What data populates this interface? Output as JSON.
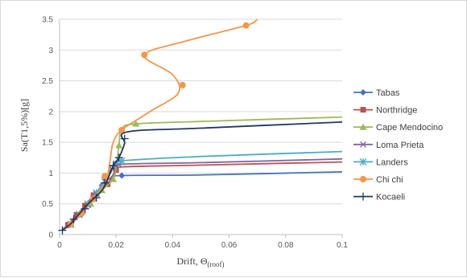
{
  "chart_data": {
    "type": "line",
    "xlabel": "Drift, Θ",
    "xlabel_sub": "(roof)",
    "ylabel": "Sa(T1,5%)[g]",
    "xlim": [
      0,
      0.1
    ],
    "ylim": [
      0,
      3.5
    ],
    "x_ticks": [
      "0",
      "0.02",
      "0.04",
      "0.06",
      "0.08",
      "0.1"
    ],
    "y_ticks": [
      "0",
      "0.5",
      "1",
      "1.5",
      "2",
      "2.5",
      "3",
      "3.5"
    ],
    "grid": "horizontal",
    "legend_position": "right",
    "series": [
      {
        "name": "Tabas",
        "color": "#4472C4",
        "marker": "diamond",
        "points": [
          [
            0.0008,
            0.08
          ],
          [
            0.003,
            0.15
          ],
          [
            0.006,
            0.3
          ],
          [
            0.009,
            0.45
          ],
          [
            0.012,
            0.62
          ],
          [
            0.015,
            0.8
          ],
          [
            0.018,
            0.92
          ],
          [
            0.022,
            0.96
          ],
          [
            0.05,
            0.97
          ],
          [
            0.1,
            1.02
          ]
        ],
        "marker_points": [
          [
            0.003,
            0.15
          ],
          [
            0.006,
            0.3
          ],
          [
            0.009,
            0.45
          ],
          [
            0.012,
            0.62
          ],
          [
            0.015,
            0.8
          ],
          [
            0.022,
            0.96
          ]
        ]
      },
      {
        "name": "Northridge",
        "color": "#C0504D",
        "marker": "square",
        "points": [
          [
            0.0008,
            0.08
          ],
          [
            0.003,
            0.16
          ],
          [
            0.006,
            0.32
          ],
          [
            0.009,
            0.47
          ],
          [
            0.012,
            0.64
          ],
          [
            0.015,
            0.78
          ],
          [
            0.017,
            0.82
          ],
          [
            0.02,
            1.05
          ],
          [
            0.022,
            1.1
          ],
          [
            0.05,
            1.13
          ],
          [
            0.1,
            1.18
          ]
        ],
        "marker_points": [
          [
            0.003,
            0.16
          ],
          [
            0.006,
            0.32
          ],
          [
            0.009,
            0.47
          ],
          [
            0.012,
            0.64
          ],
          [
            0.017,
            0.82
          ],
          [
            0.02,
            1.05
          ]
        ]
      },
      {
        "name": "Cape Mendocino",
        "color": "#9BBB59",
        "marker": "triangle",
        "points": [
          [
            0.001,
            0.08
          ],
          [
            0.004,
            0.17
          ],
          [
            0.007,
            0.33
          ],
          [
            0.011,
            0.5
          ],
          [
            0.015,
            0.72
          ],
          [
            0.019,
            0.9
          ],
          [
            0.02,
            1.1
          ],
          [
            0.021,
            1.45
          ],
          [
            0.022,
            1.72
          ],
          [
            0.027,
            1.8
          ],
          [
            0.05,
            1.84
          ],
          [
            0.1,
            1.91
          ]
        ],
        "marker_points": [
          [
            0.004,
            0.17
          ],
          [
            0.007,
            0.33
          ],
          [
            0.011,
            0.5
          ],
          [
            0.015,
            0.72
          ],
          [
            0.019,
            0.9
          ],
          [
            0.021,
            1.45
          ],
          [
            0.027,
            1.8
          ]
        ]
      },
      {
        "name": "Loma Prieta",
        "color": "#8064A2",
        "marker": "x",
        "points": [
          [
            0.001,
            0.08
          ],
          [
            0.004,
            0.16
          ],
          [
            0.007,
            0.32
          ],
          [
            0.01,
            0.48
          ],
          [
            0.013,
            0.66
          ],
          [
            0.016,
            0.86
          ],
          [
            0.018,
            1.05
          ],
          [
            0.021,
            1.14
          ],
          [
            0.05,
            1.17
          ],
          [
            0.1,
            1.23
          ]
        ],
        "marker_points": [
          [
            0.004,
            0.16
          ],
          [
            0.007,
            0.32
          ],
          [
            0.01,
            0.48
          ],
          [
            0.013,
            0.66
          ],
          [
            0.016,
            0.86
          ],
          [
            0.021,
            1.14
          ]
        ]
      },
      {
        "name": "Landers",
        "color": "#4BACC6",
        "marker": "star",
        "points": [
          [
            0.001,
            0.08
          ],
          [
            0.004,
            0.17
          ],
          [
            0.007,
            0.33
          ],
          [
            0.01,
            0.5
          ],
          [
            0.013,
            0.68
          ],
          [
            0.016,
            0.88
          ],
          [
            0.018,
            1.0
          ],
          [
            0.02,
            1.15
          ],
          [
            0.022,
            1.2
          ],
          [
            0.05,
            1.27
          ],
          [
            0.1,
            1.35
          ]
        ],
        "marker_points": [
          [
            0.004,
            0.17
          ],
          [
            0.007,
            0.33
          ],
          [
            0.01,
            0.5
          ],
          [
            0.013,
            0.68
          ],
          [
            0.016,
            0.88
          ],
          [
            0.02,
            1.15
          ],
          [
            0.022,
            1.2
          ]
        ]
      },
      {
        "name": "Chi chi",
        "color": "#F79646",
        "marker": "circle",
        "points": [
          [
            0.001,
            0.08
          ],
          [
            0.004,
            0.17
          ],
          [
            0.008,
            0.35
          ],
          [
            0.012,
            0.58
          ],
          [
            0.016,
            0.84
          ],
          [
            0.017,
            0.95
          ],
          [
            0.018,
            1.25
          ],
          [
            0.019,
            1.5
          ],
          [
            0.022,
            1.7
          ],
          [
            0.032,
            2.0
          ],
          [
            0.042,
            2.3
          ],
          [
            0.04,
            2.6
          ],
          [
            0.03,
            2.92
          ],
          [
            0.045,
            3.15
          ],
          [
            0.066,
            3.4
          ],
          [
            0.07,
            3.5
          ]
        ],
        "marker_points": [
          [
            0.004,
            0.17
          ],
          [
            0.008,
            0.35
          ],
          [
            0.012,
            0.58
          ],
          [
            0.016,
            0.95
          ],
          [
            0.022,
            1.7
          ],
          [
            0.0435,
            2.43
          ],
          [
            0.03,
            2.92
          ],
          [
            0.066,
            3.4
          ]
        ]
      },
      {
        "name": "Kocaeli",
        "color": "#1F3864",
        "marker": "plus",
        "points": [
          [
            0.001,
            0.07
          ],
          [
            0.004,
            0.18
          ],
          [
            0.007,
            0.34
          ],
          [
            0.011,
            0.54
          ],
          [
            0.015,
            0.72
          ],
          [
            0.017,
            0.9
          ],
          [
            0.019,
            1.12
          ],
          [
            0.021,
            1.25
          ],
          [
            0.023,
            1.48
          ],
          [
            0.024,
            1.67
          ],
          [
            0.05,
            1.73
          ],
          [
            0.1,
            1.83
          ]
        ],
        "marker_points": [
          [
            0.001,
            0.07
          ],
          [
            0.005,
            0.25
          ],
          [
            0.009,
            0.42
          ],
          [
            0.013,
            0.6
          ],
          [
            0.016,
            0.84
          ],
          [
            0.019,
            1.12
          ],
          [
            0.021,
            1.25
          ],
          [
            0.023,
            1.56
          ]
        ]
      }
    ]
  }
}
